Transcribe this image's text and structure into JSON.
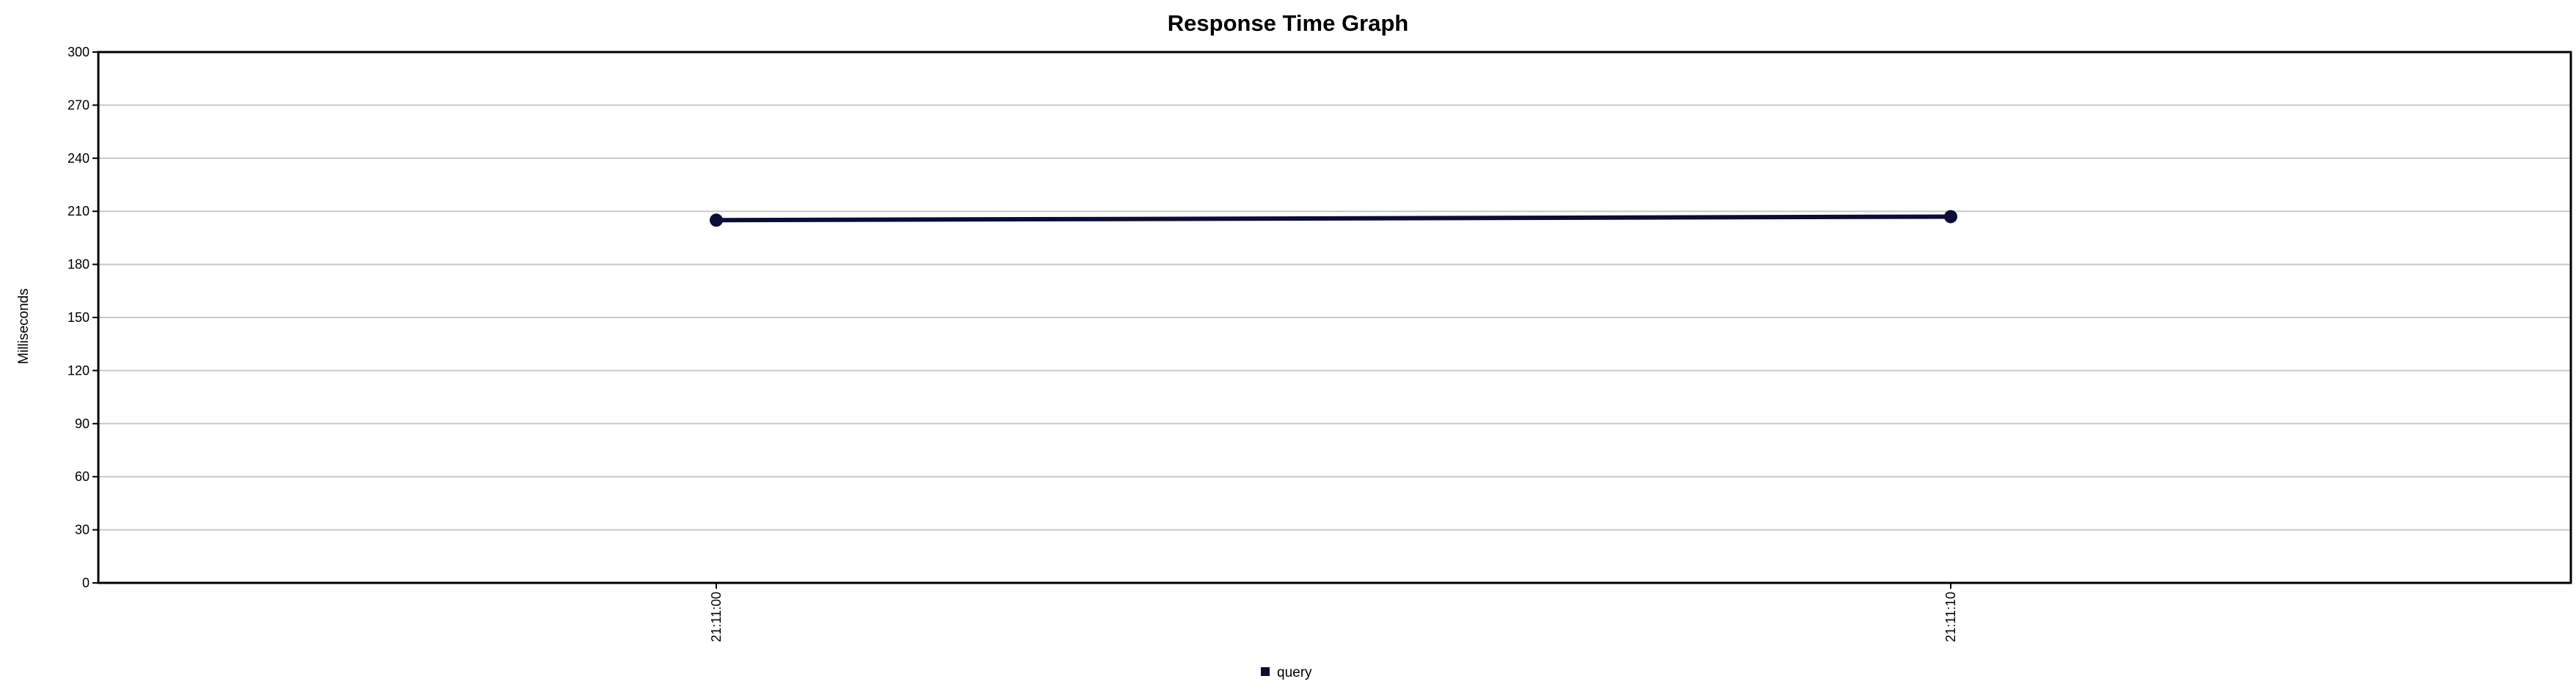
{
  "chart_data": {
    "type": "line",
    "title": "Response Time Graph",
    "ylabel": "Milliseconds",
    "xlabel": "",
    "ylim": [
      0,
      300
    ],
    "yticks": [
      "0",
      "30",
      "60",
      "90",
      "120",
      "150",
      "180",
      "210",
      "240",
      "270",
      "300"
    ],
    "categories": [
      "21:11:00",
      "21:11:10"
    ],
    "grid": true,
    "legend_position": "bottom",
    "series": [
      {
        "name": "query",
        "color": "#0c0c38",
        "values": [
          205,
          207
        ]
      }
    ]
  }
}
